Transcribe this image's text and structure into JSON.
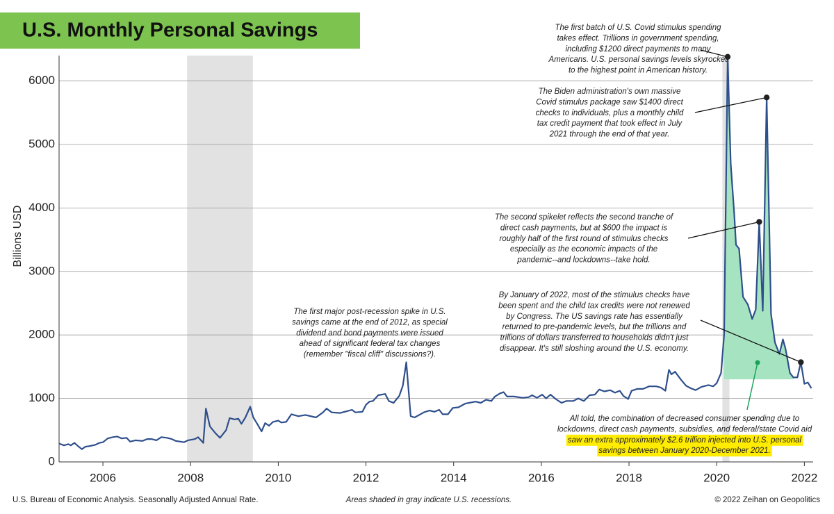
{
  "chart_data": {
    "type": "line",
    "title": "U.S. Monthly Personal Savings",
    "y_label": "Billions USD",
    "color": "#2e4f8c",
    "x": [
      2005.0,
      2005.11,
      2005.21,
      2005.27,
      2005.35,
      2005.43,
      2005.52,
      2005.6,
      2005.71,
      2005.83,
      2005.92,
      2006.0,
      2006.11,
      2006.22,
      2006.32,
      2006.43,
      2006.54,
      2006.62,
      2006.74,
      2006.9,
      2007.01,
      2007.11,
      2007.22,
      2007.33,
      2007.46,
      2007.57,
      2007.66,
      2007.77,
      2007.85,
      2007.94,
      2008.1,
      2008.17,
      2008.29,
      2008.35,
      2008.44,
      2008.57,
      2008.67,
      2008.81,
      2008.89,
      2009.0,
      2009.09,
      2009.16,
      2009.25,
      2009.36,
      2009.43,
      2009.52,
      2009.62,
      2009.7,
      2009.79,
      2009.88,
      2010.0,
      2010.07,
      2010.18,
      2010.3,
      2010.46,
      2010.62,
      2010.86,
      2011.02,
      2011.1,
      2011.22,
      2011.41,
      2011.57,
      2011.68,
      2011.76,
      2011.92,
      2012.0,
      2012.08,
      2012.16,
      2012.28,
      2012.44,
      2012.52,
      2012.63,
      2012.76,
      2012.84,
      2012.92,
      2013.02,
      2013.11,
      2013.32,
      2013.45,
      2013.56,
      2013.67,
      2013.75,
      2013.87,
      2013.98,
      2014.11,
      2014.27,
      2014.5,
      2014.62,
      2014.74,
      2014.86,
      2014.94,
      2015.06,
      2015.14,
      2015.22,
      2015.38,
      2015.57,
      2015.71,
      2015.79,
      2015.9,
      2016.02,
      2016.11,
      2016.21,
      2016.33,
      2016.46,
      2016.57,
      2016.73,
      2016.84,
      2016.97,
      2017.1,
      2017.22,
      2017.32,
      2017.44,
      2017.57,
      2017.68,
      2017.79,
      2017.87,
      2017.98,
      2018.06,
      2018.19,
      2018.32,
      2018.46,
      2018.62,
      2018.73,
      2018.83,
      2018.91,
      2018.97,
      2019.05,
      2019.18,
      2019.3,
      2019.41,
      2019.52,
      2019.65,
      2019.81,
      2019.92,
      2020.0,
      2020.1,
      2020.17,
      2020.25,
      2020.32,
      2020.4,
      2020.44,
      2020.51,
      2020.6,
      2020.71,
      2020.81,
      2020.89,
      2020.97,
      2021.05,
      2021.14,
      2021.24,
      2021.33,
      2021.43,
      2021.51,
      2021.57,
      2021.67,
      2021.75,
      2021.84,
      2021.92,
      2022.0,
      2022.08,
      2022.16
    ],
    "values": [
      290,
      260,
      280,
      260,
      300,
      250,
      200,
      240,
      250,
      270,
      300,
      310,
      370,
      390,
      400,
      370,
      380,
      320,
      340,
      330,
      360,
      360,
      340,
      390,
      380,
      360,
      330,
      320,
      310,
      340,
      360,
      390,
      300,
      840,
      560,
      450,
      380,
      500,
      690,
      670,
      680,
      600,
      700,
      870,
      700,
      600,
      480,
      610,
      570,
      630,
      650,
      620,
      630,
      750,
      720,
      740,
      700,
      780,
      840,
      780,
      770,
      800,
      820,
      780,
      790,
      900,
      950,
      960,
      1050,
      1070,
      960,
      930,
      1040,
      1200,
      1570,
      720,
      700,
      780,
      810,
      790,
      820,
      750,
      750,
      850,
      860,
      920,
      950,
      930,
      980,
      960,
      1030,
      1080,
      1100,
      1030,
      1030,
      1010,
      1020,
      1050,
      1010,
      1060,
      1000,
      1060,
      990,
      930,
      960,
      960,
      1000,
      960,
      1050,
      1060,
      1140,
      1110,
      1130,
      1090,
      1120,
      1040,
      990,
      1120,
      1150,
      1150,
      1190,
      1190,
      1170,
      1120,
      1450,
      1380,
      1420,
      1300,
      1200,
      1160,
      1130,
      1180,
      1210,
      1190,
      1240,
      1400,
      2000,
      6380,
      4700,
      3900,
      3420,
      3360,
      2600,
      2480,
      2250,
      2400,
      3780,
      2380,
      5740,
      2330,
      1880,
      1700,
      1930,
      1780,
      1400,
      1330,
      1330,
      1570,
      1230,
      1250,
      1160
    ],
    "xlim": [
      2005,
      2022.2
    ],
    "xticks": [
      2006,
      2008,
      2010,
      2012,
      2014,
      2016,
      2018,
      2020,
      2022
    ],
    "ylim": [
      0,
      6400
    ],
    "yticks": [
      0,
      1000,
      2000,
      3000,
      4000,
      5000,
      6000
    ],
    "grid": true,
    "recessions": [
      [
        2007.92,
        2009.42
      ],
      [
        2020.13,
        2020.29
      ]
    ],
    "highlight_area": {
      "from": 2020.17,
      "to": 2021.75,
      "base": 1300,
      "color": "#a6e3c0"
    },
    "annotations": [
      {
        "x": 2020.25,
        "lines": [
          "The first batch of U.S. Covid stimulus spending",
          "takes effect. Trillions in government spending,",
          "including $1200 direct payments to many",
          "Americans. U.S. personal savings levels skyrocket",
          "to the highest point in American history."
        ]
      },
      {
        "x": 2021.14,
        "lines": [
          "The Biden administration's own massive",
          "Covid stimulus package saw $1400 direct",
          "checks to individuals, plus a monthly child",
          "tax credit payment that took effect in July",
          "2021 through the end of that year."
        ]
      },
      {
        "x": 2020.97,
        "lines": [
          "The second spikelet reflects the second tranche of",
          "direct cash payments, but at $600 the impact is",
          "roughly half of the first round of stimulus checks",
          "especially as the economic impacts of the",
          "pandemic--and lockdowns--take hold."
        ]
      },
      {
        "x": 2021.92,
        "lines": [
          "By January of 2022, most of the stimulus checks have",
          "been spent and the child tax credits were not renewed",
          "by Congress. The US savings rate has essentially",
          "returned to pre-pandemic levels, but the trillions and",
          "trillions of dollars transferred to households didn't just",
          "disappear. It's still sloshing around the U.S. economy."
        ]
      },
      {
        "lines": [
          "All told, the combination of decreased consumer spending due to",
          "lockdowns, direct cash payments, subsidies, and federal/state Covid aid"
        ],
        "highlighted_lines": [
          "saw an extra approximately $2.6 trillion injected into U.S. personal",
          "savings between January 2020-December 2021."
        ]
      },
      {
        "lines": [
          "The first major post-recession spike in U.S.",
          "savings came at the end of 2012, as special",
          "dividend and bond payments were issued",
          "ahead of significant federal tax changes",
          "(remember \"fiscal cliff\" discussions?)."
        ]
      }
    ],
    "source": "U.S. Bureau of Economic Analysis. Seasonally Adjusted Annual Rate.",
    "recession_note": "Areas shaded in gray indicate U.S. recessions.",
    "credit": "© 2022 Zeihan on Geopolitics"
  }
}
